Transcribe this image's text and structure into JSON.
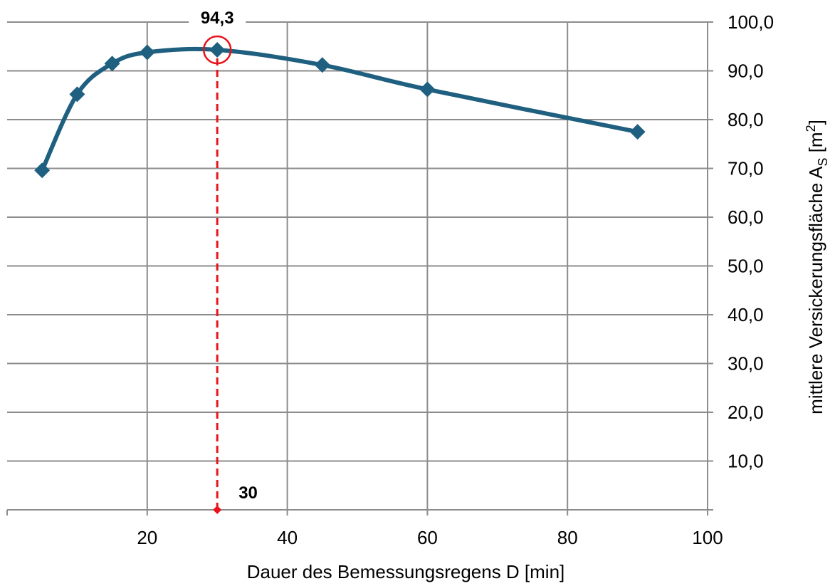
{
  "chart_data": {
    "type": "line",
    "x": [
      5,
      10,
      15,
      20,
      30,
      45,
      60,
      90
    ],
    "series": [
      {
        "values": [
          69.6,
          85.2,
          91.5,
          93.8,
          94.3,
          91.2,
          86.2,
          77.5
        ],
        "color": "#1f5f7f",
        "marker": "diamond"
      }
    ],
    "xlabel": "Dauer des Bemessungsregens  D [min]",
    "ylabel_main": "mittlere Versickerungsfläche A",
    "ylabel_sub": "S",
    "ylabel_unit_open": " [m",
    "ylabel_sup": "2",
    "ylabel_unit_close": "]",
    "xlim": [
      0,
      100
    ],
    "ylim": [
      0,
      100
    ],
    "xticks": [
      20,
      40,
      60,
      80,
      100
    ],
    "xtick_labels": [
      "20",
      "40",
      "60",
      "80",
      "100"
    ],
    "yticks": [
      10,
      20,
      30,
      40,
      50,
      60,
      70,
      80,
      90,
      100
    ],
    "ytick_labels": [
      "10,0",
      "20,0",
      "30,0",
      "40,0",
      "50,0",
      "60,0",
      "70,0",
      "80,0",
      "90,0",
      "100,0"
    ],
    "y_axis_side": "right",
    "grid": true,
    "annotations": {
      "max_x": 30,
      "max_y": 94.3,
      "max_value_label": "94,3",
      "max_x_label": "30",
      "highlight_color": "#e8131b"
    }
  }
}
